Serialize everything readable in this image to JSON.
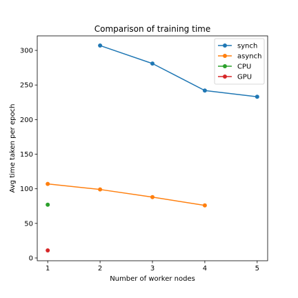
{
  "chart_data": {
    "type": "line",
    "title": "Comparison of training time",
    "xlabel": "Number of worker nodes",
    "ylabel": "Avg time taken per epoch",
    "xlim": [
      0.8,
      5.2
    ],
    "ylim": [
      -4,
      321
    ],
    "xticks": [
      1,
      2,
      3,
      4,
      5
    ],
    "yticks": [
      0,
      50,
      100,
      150,
      200,
      250,
      300
    ],
    "grid": false,
    "legend_position": "top-right",
    "series": [
      {
        "name": "synch",
        "color": "#1f77b4",
        "x": [
          2,
          3,
          4,
          5
        ],
        "y": [
          307,
          281,
          242,
          233
        ]
      },
      {
        "name": "asynch",
        "color": "#ff7f0e",
        "x": [
          1,
          2,
          3,
          4
        ],
        "y": [
          107,
          99,
          88,
          76
        ]
      },
      {
        "name": "CPU",
        "color": "#2ca02c",
        "x": [
          1
        ],
        "y": [
          77
        ]
      },
      {
        "name": "GPU",
        "color": "#d62728",
        "x": [
          1
        ],
        "y": [
          11
        ]
      }
    ]
  }
}
